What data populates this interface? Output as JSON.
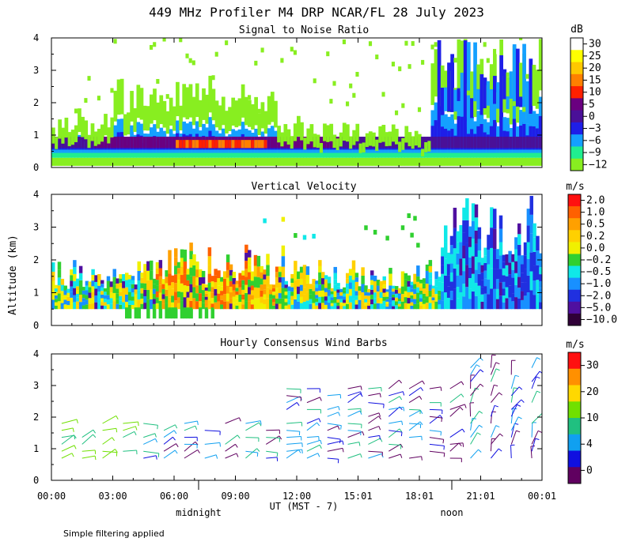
{
  "title": "449 MHz Profiler M4 DRP NCAR/FL 28 July 2023",
  "footnote": "Simple filtering applied",
  "ylabel": "Altitude (km)",
  "xlabel": "UT  (MST - 7)",
  "midnight_label": "midnight",
  "noon_label": "noon",
  "chart_data": [
    {
      "type": "heatmap",
      "title": "Signal to Noise Ratio",
      "x_ticks": [
        "00:00",
        "03:00",
        "06:00",
        "09:00",
        "12:00",
        "15:01",
        "18:01",
        "21:01",
        "00:01"
      ],
      "y_ticks": [
        "0",
        "1",
        "2",
        "3",
        "4"
      ],
      "ylim": [
        0,
        4
      ],
      "colorbar": {
        "unit": "dB",
        "labels": [
          "30",
          "25",
          "20",
          "15",
          "10",
          "5",
          "0",
          "−3",
          "−6",
          "−9",
          "−12"
        ],
        "colors": [
          "#ffffff",
          "#ffff00",
          "#ffc800",
          "#ff8000",
          "#ff2000",
          "#6a0080",
          "#4a1098",
          "#1e1ee8",
          "#14a0ff",
          "#20ee90",
          "#88ee20"
        ]
      }
    },
    {
      "type": "heatmap",
      "title": "Vertical Velocity",
      "x_ticks": [
        "00:00",
        "03:00",
        "06:00",
        "09:00",
        "12:00",
        "15:01",
        "18:01",
        "21:01",
        "00:01"
      ],
      "y_ticks": [
        "0",
        "1",
        "2",
        "3",
        "4"
      ],
      "ylim": [
        0,
        4
      ],
      "colorbar": {
        "unit": "m/s",
        "labels": [
          "2.0",
          "1.0",
          "0.5",
          "0.2",
          "0.0",
          "−0.2",
          "−0.5",
          "−1.0",
          "−2.0",
          "−5.0",
          "−10.0"
        ],
        "colors": [
          "#ff1010",
          "#ff6000",
          "#ffa000",
          "#ffd000",
          "#f0f000",
          "#30d030",
          "#10e8e8",
          "#1890ff",
          "#2030e0",
          "#5010a0",
          "#300038"
        ]
      }
    },
    {
      "type": "scatter",
      "title": "Hourly Consensus Wind Barbs",
      "x_ticks": [
        "00:00",
        "03:00",
        "06:00",
        "09:00",
        "12:00",
        "15:01",
        "18:01",
        "21:01",
        "00:01"
      ],
      "y_ticks": [
        "0",
        "1",
        "2",
        "3",
        "4"
      ],
      "ylim": [
        0,
        4
      ],
      "colorbar": {
        "unit": "m/s",
        "labels": [
          "30",
          "20",
          "10",
          "4",
          "0"
        ],
        "colors": [
          "#ff1010",
          "#ff9000",
          "#ffd800",
          "#70e000",
          "#20c080",
          "#10a0f0",
          "#1010e0",
          "#600060"
        ]
      }
    }
  ]
}
